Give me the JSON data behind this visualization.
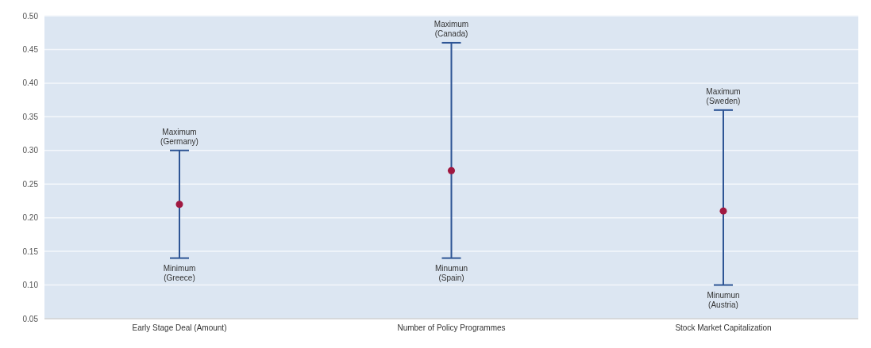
{
  "chart_data": {
    "type": "scatter",
    "categories": [
      "Early Stage Deal (Amount)",
      "Number of Policy Programmes",
      "Stock Market Capitalization"
    ],
    "values": [
      0.22,
      0.27,
      0.21
    ],
    "errors": [
      [
        0.14,
        0.3
      ],
      [
        0.14,
        0.46
      ],
      [
        0.1,
        0.36
      ]
    ],
    "color": "#a01840",
    "marker": "circle",
    "ylim": [
      0.05,
      0.5
    ],
    "yticks": [
      {
        "value": 0.05,
        "label": "0.05"
      },
      {
        "value": 0.1,
        "label": "0.10"
      },
      {
        "value": 0.15,
        "label": "0.15"
      },
      {
        "value": 0.2,
        "label": "0.20"
      },
      {
        "value": 0.25,
        "label": "0.25"
      },
      {
        "value": 0.3,
        "label": "0.30"
      },
      {
        "value": 0.35,
        "label": "0.35"
      },
      {
        "value": 0.4,
        "label": "0.40"
      },
      {
        "value": 0.45,
        "label": "0.45"
      },
      {
        "value": 0.5,
        "label": "0.50"
      }
    ],
    "grid": "y",
    "annotations": [
      {
        "text": "Maximum\n(Germany)",
        "x": "Early Stage Deal (Amount)",
        "y": 0.3
      },
      {
        "text": "Minimum\n(Greece)",
        "x": "Early Stage Deal (Amount)",
        "y": 0.14
      },
      {
        "text": "Maximum\n(Canada)",
        "x": "Number of Policy Programmes",
        "y": 0.46
      },
      {
        "text": "Minumun\n(Spain)",
        "x": "Number of Policy Programmes",
        "y": 0.14
      },
      {
        "text": "Maximum\n(Sweden)",
        "x": "Stock Market Capitalization",
        "y": 0.36
      },
      {
        "text": "Minumun\n(Austria)",
        "x": "Stock Market Capitalization",
        "y": 0.1
      }
    ]
  }
}
